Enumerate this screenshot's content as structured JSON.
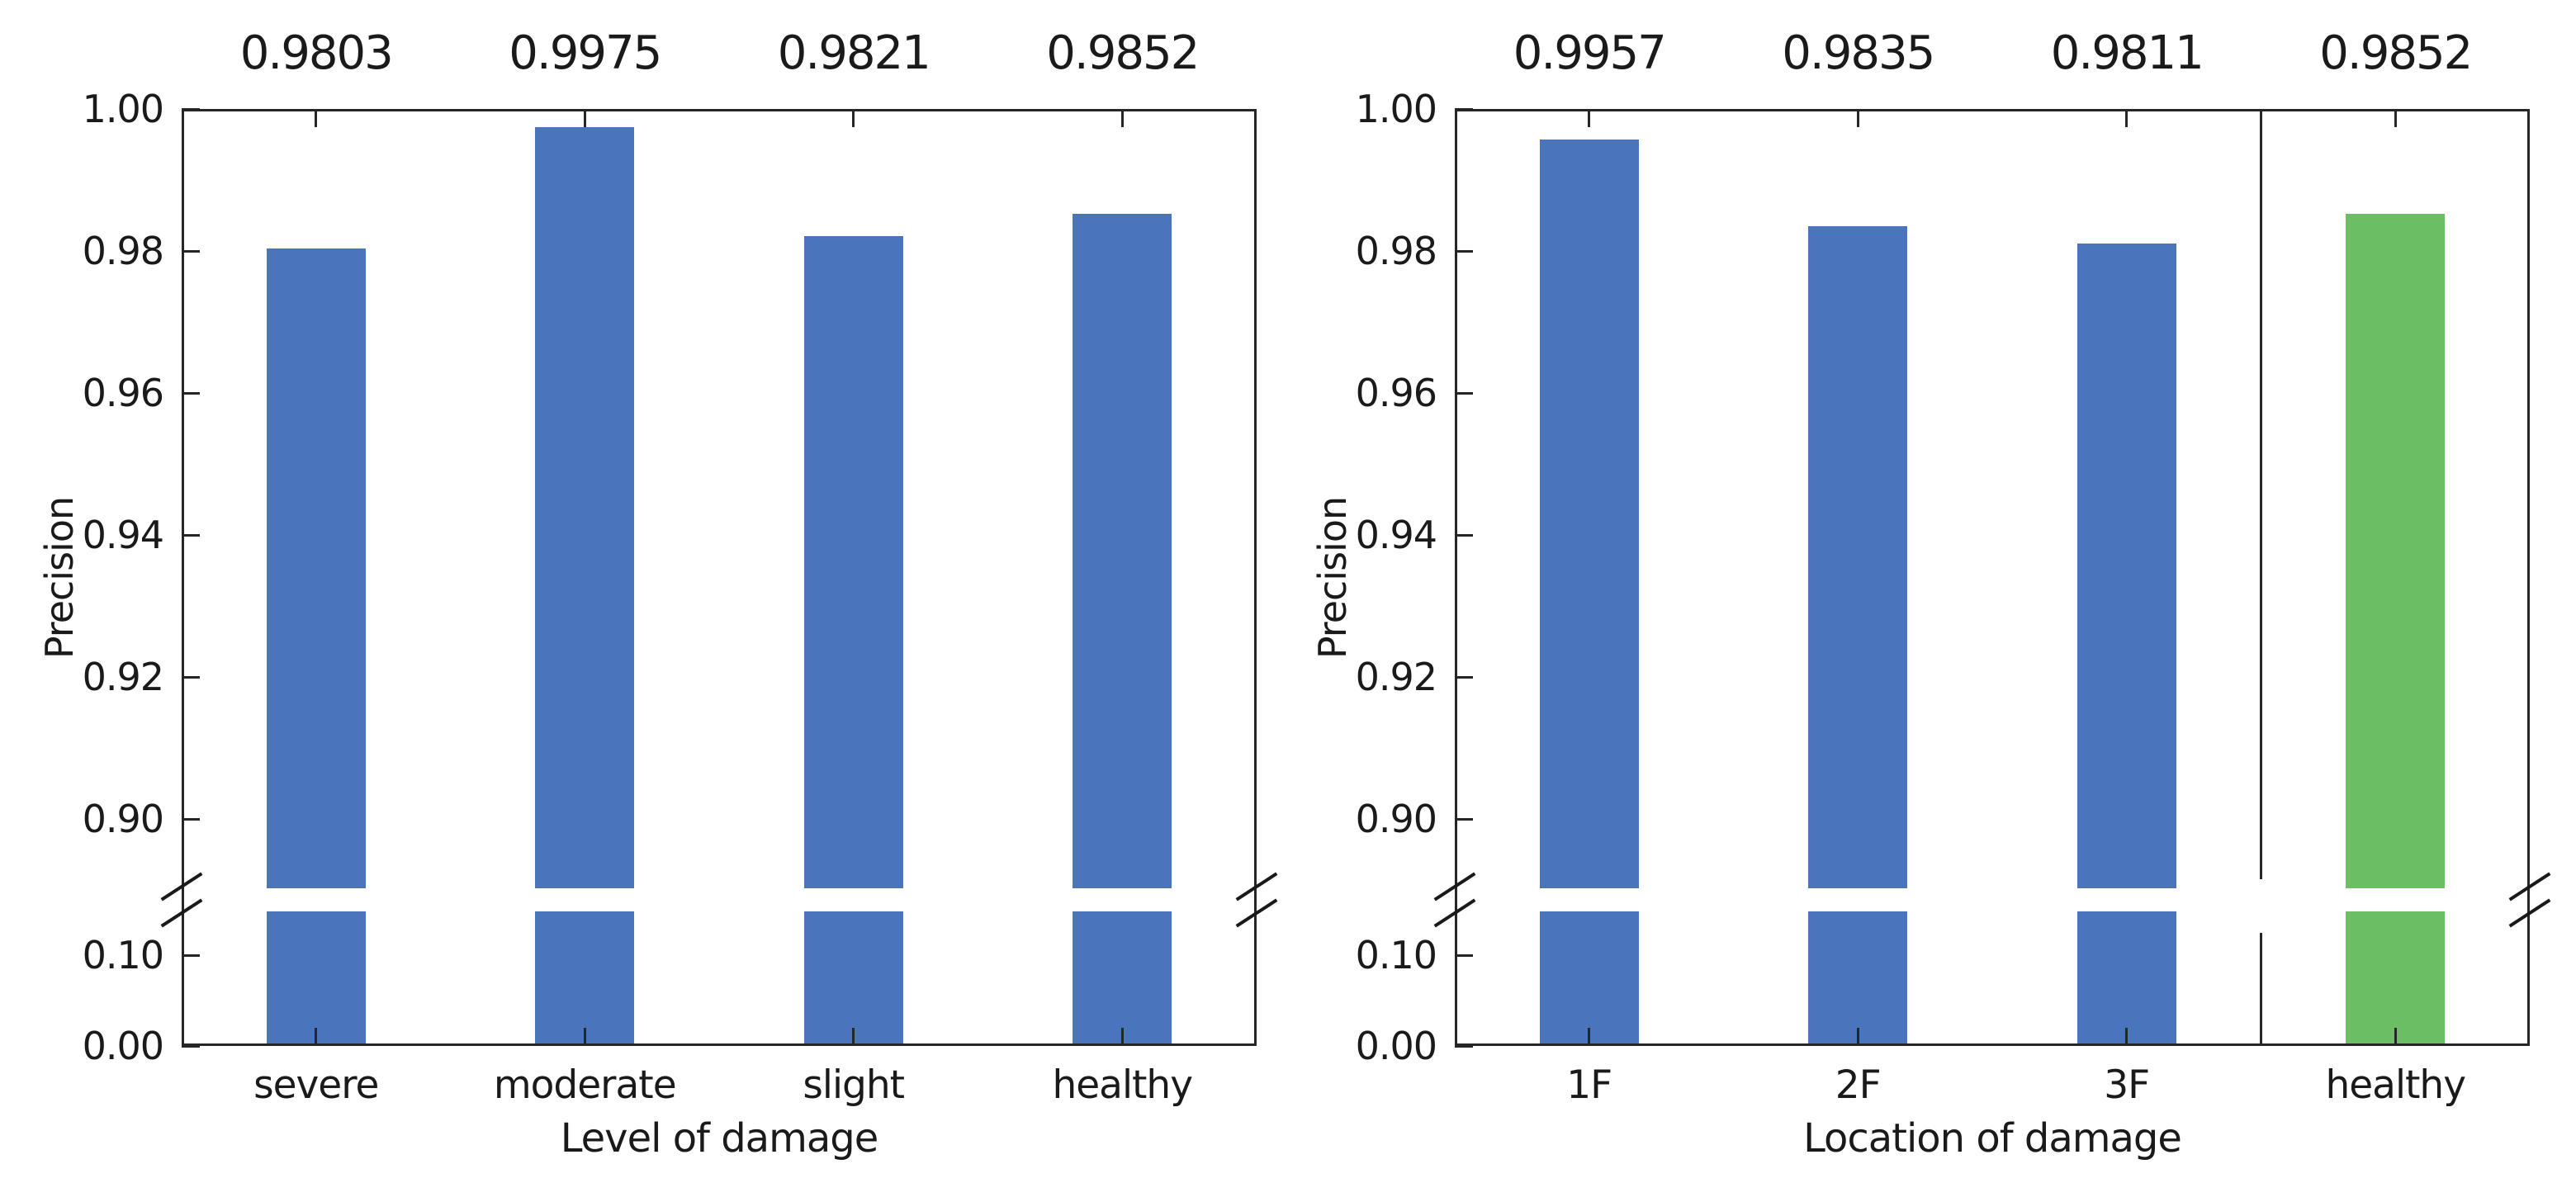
{
  "figure": {
    "background": "#ffffff"
  },
  "colors": {
    "bar_blue": "#4a74bc",
    "bar_green": "#6cbe65",
    "spine": "#262626",
    "text": "#1a1a1a"
  },
  "chart_data": [
    {
      "type": "bar",
      "panel": "left",
      "title": "",
      "categories": [
        "severe",
        "moderate",
        "slight",
        "healthy"
      ],
      "values": [
        0.9803,
        0.9975,
        0.9821,
        0.9852
      ],
      "value_labels": [
        "0.9803",
        "0.9975",
        "0.9821",
        "0.9852"
      ],
      "bar_colors": [
        "#4a74bc",
        "#4a74bc",
        "#4a74bc",
        "#4a74bc"
      ],
      "xlabel": "Level of damage",
      "ylabel": "Precision",
      "y_ticks_upper": [
        "1.00",
        "0.98",
        "0.96",
        "0.94",
        "0.92",
        "0.90"
      ],
      "y_ticks_lower": [
        "0.10",
        "0.00"
      ],
      "axis_break": {
        "lower_range": [
          0.0,
          0.148
        ],
        "upper_range": [
          0.888,
          1.0
        ]
      },
      "grid": "off",
      "legend": "none",
      "separator_after_index": null
    },
    {
      "type": "bar",
      "panel": "right",
      "title": "",
      "categories": [
        "1F",
        "2F",
        "3F",
        "healthy"
      ],
      "values": [
        0.9957,
        0.9835,
        0.9811,
        0.9852
      ],
      "value_labels": [
        "0.9957",
        "0.9835",
        "0.9811",
        "0.9852"
      ],
      "bar_colors": [
        "#4a74bc",
        "#4a74bc",
        "#4a74bc",
        "#6cbe65"
      ],
      "xlabel": "Location of damage",
      "ylabel": "Precision",
      "y_ticks_upper": [
        "1.00",
        "0.98",
        "0.96",
        "0.94",
        "0.92",
        "0.90"
      ],
      "y_ticks_lower": [
        "0.10",
        "0.00"
      ],
      "axis_break": {
        "lower_range": [
          0.0,
          0.148
        ],
        "upper_range": [
          0.888,
          1.0
        ]
      },
      "grid": "off",
      "legend": "none",
      "separator_after_index": 2
    }
  ]
}
